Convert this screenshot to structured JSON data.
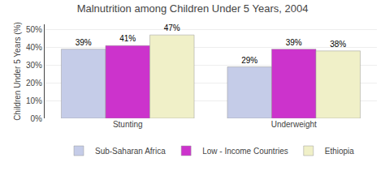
{
  "chart_data": {
    "type": "bar",
    "title": "Malnutrition among Children Under 5 Years, 2004",
    "ylabel": "Children Under 5 Years (%)",
    "categories": [
      "Stunting",
      "Underweight"
    ],
    "series": [
      {
        "name": "Sub-Saharan Africa",
        "color": "#c5cce8",
        "values": [
          39,
          29
        ],
        "value_labels": [
          "39%",
          "29%"
        ]
      },
      {
        "name": "Low - Income Countries",
        "color": "#cc33cc",
        "values": [
          41,
          39
        ],
        "value_labels": [
          "41%",
          "39%"
        ]
      },
      {
        "name": "Ethiopia",
        "color": "#f0f0c8",
        "values": [
          47,
          38
        ],
        "value_labels": [
          "47%",
          "38%"
        ]
      }
    ],
    "ylim": [
      0,
      53
    ],
    "yticks": [
      {
        "value": 0,
        "label": "0%"
      },
      {
        "value": 10,
        "label": "10%"
      },
      {
        "value": 20,
        "label": "20%"
      },
      {
        "value": 30,
        "label": "30%"
      },
      {
        "value": 40,
        "label": "40%"
      },
      {
        "value": 50,
        "label": "50%"
      }
    ],
    "grid": true,
    "legend": "bottom",
    "data_labels": true
  }
}
